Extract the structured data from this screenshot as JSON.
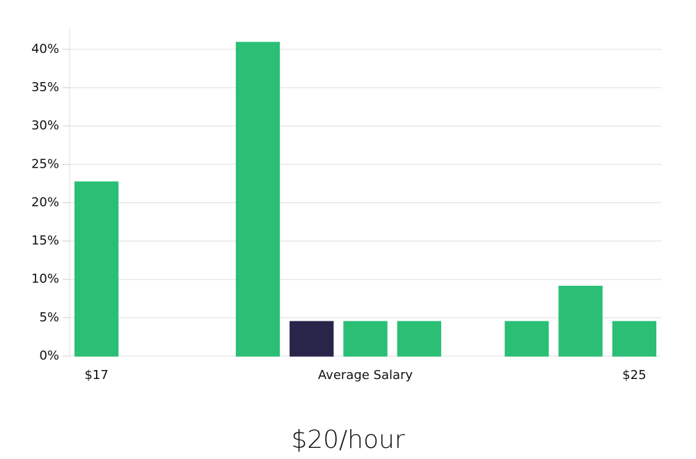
{
  "chart_data": {
    "type": "bar",
    "title": "$20/hour",
    "x_label": "Average Salary",
    "categories": [
      "$17",
      null,
      null,
      null,
      null,
      null,
      null,
      null,
      null,
      null,
      "$25"
    ],
    "values": [
      22.7,
      0,
      0,
      40.9,
      4.5,
      4.5,
      4.5,
      0,
      4.5,
      9.1,
      4.5
    ],
    "colors": [
      "#2bbf76",
      "#2bbf76",
      "#2bbf76",
      "#2bbf76",
      "#29244a",
      "#2bbf76",
      "#2bbf76",
      "#2bbf76",
      "#2bbf76",
      "#2bbf76",
      "#2bbf76"
    ],
    "ylim": [
      0,
      42.8
    ],
    "yticks": [
      {
        "value": 0,
        "label": "0%"
      },
      {
        "value": 5,
        "label": "5%"
      },
      {
        "value": 10,
        "label": "10%"
      },
      {
        "value": 15,
        "label": "15%"
      },
      {
        "value": 20,
        "label": "20%"
      },
      {
        "value": 25,
        "label": "25%"
      },
      {
        "value": 30,
        "label": "30%"
      },
      {
        "value": 35,
        "label": "35%"
      },
      {
        "value": 40,
        "label": "40%"
      }
    ],
    "grid": true
  }
}
